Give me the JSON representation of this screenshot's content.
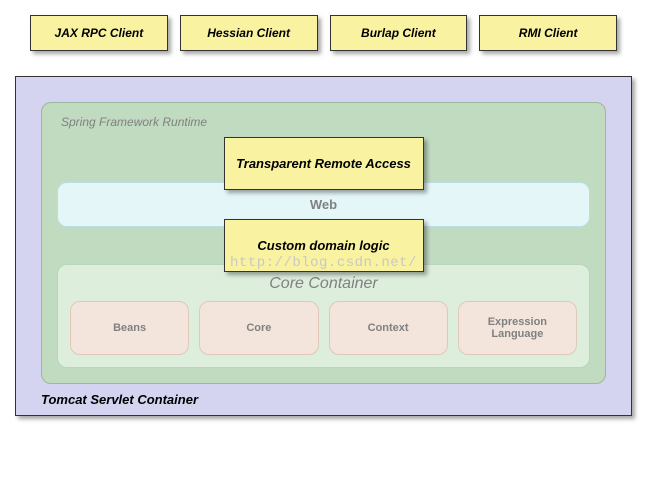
{
  "type": "infographic",
  "colors": {
    "yellow_fill": "#f9f2a1",
    "tomcat_fill": "#d4d3f0",
    "spring_fill": "#c1dbc1",
    "web_fill": "#e4f6f8",
    "web_border": "#b8e0e4",
    "core_fill": "#ddeedd",
    "core_border": "#b9d6b9",
    "module_fill": "#f3e5dc",
    "module_border": "#e0c8b8",
    "box_border": "#333333",
    "label_gray": "#808080"
  },
  "clients": [
    {
      "label": "JAX RPC Client"
    },
    {
      "label": "Hessian Client"
    },
    {
      "label": "Burlap Client"
    },
    {
      "label": "RMI Client"
    }
  ],
  "tomcat": {
    "label": "Tomcat Servlet Container"
  },
  "spring": {
    "label": "Spring Framework Runtime"
  },
  "remote_box": {
    "label": "Transparent Remote Access"
  },
  "web_bar": {
    "label": "Web"
  },
  "domain_box": {
    "label": "Custom domain logic"
  },
  "core": {
    "label": "Core Container",
    "modules": [
      {
        "label": "Beans"
      },
      {
        "label": "Core"
      },
      {
        "label": "Context"
      },
      {
        "label": "Expression Language"
      }
    ]
  },
  "watermark": "http://blog.csdn.net/"
}
